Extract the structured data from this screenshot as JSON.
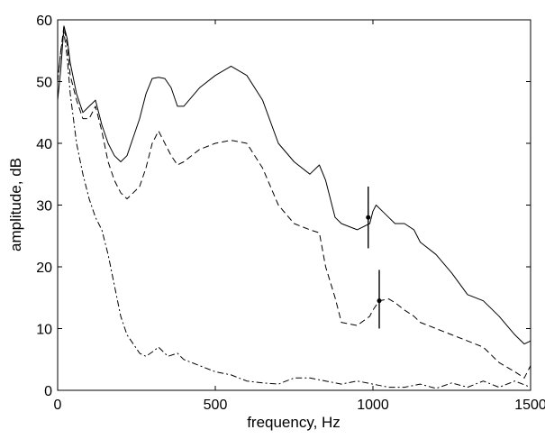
{
  "chart_data": {
    "type": "line",
    "xlabel": "frequency, Hz",
    "ylabel": "amplitude, dB",
    "xlim": [
      0,
      1500
    ],
    "ylim": [
      0,
      60
    ],
    "xticks": [
      0,
      500,
      1000,
      1500
    ],
    "yticks": [
      0,
      10,
      20,
      30,
      40,
      50,
      60
    ],
    "grid": false,
    "legend": "none",
    "series": [
      {
        "style": "solid",
        "x": [
          0,
          10,
          20,
          30,
          40,
          60,
          80,
          100,
          120,
          140,
          160,
          180,
          200,
          220,
          240,
          260,
          280,
          300,
          320,
          340,
          360,
          380,
          400,
          450,
          500,
          550,
          600,
          650,
          700,
          750,
          800,
          830,
          850,
          880,
          900,
          950,
          990,
          1000,
          1010,
          1030,
          1050,
          1070,
          1100,
          1130,
          1150,
          1200,
          1250,
          1300,
          1350,
          1400,
          1450,
          1480,
          1500
        ],
        "y": [
          47,
          52,
          59,
          57,
          53,
          48,
          45,
          46,
          47,
          43,
          40,
          38,
          37,
          38,
          41,
          44,
          48,
          50.5,
          50.7,
          50.5,
          49,
          46,
          46,
          49,
          51,
          52.5,
          51,
          47,
          40,
          37,
          35,
          36.5,
          34,
          28,
          27,
          26,
          27,
          29,
          30,
          29,
          28,
          27,
          27,
          26,
          24,
          22,
          19,
          15.5,
          14.5,
          12,
          9,
          7.5,
          8
        ]
      },
      {
        "style": "dashed",
        "x": [
          0,
          10,
          20,
          30,
          40,
          60,
          80,
          100,
          120,
          140,
          160,
          180,
          200,
          220,
          240,
          260,
          280,
          300,
          320,
          340,
          360,
          380,
          400,
          450,
          500,
          550,
          600,
          650,
          700,
          750,
          800,
          830,
          850,
          880,
          900,
          950,
          990,
          1000,
          1020,
          1050,
          1070,
          1100,
          1130,
          1150,
          1200,
          1250,
          1300,
          1350,
          1400,
          1450,
          1480,
          1500
        ],
        "y": [
          50,
          55,
          59,
          56,
          51,
          47,
          44,
          44,
          46,
          42,
          37,
          34,
          32,
          31,
          32,
          33,
          36,
          40,
          42,
          40,
          38,
          36.5,
          37,
          39,
          40,
          40.5,
          40,
          36,
          30,
          27,
          26,
          25.5,
          20,
          15,
          11,
          10.5,
          12,
          13,
          14.5,
          14.8,
          14.2,
          13,
          12,
          11,
          10,
          9,
          8,
          7,
          4.5,
          3,
          2,
          4
        ]
      },
      {
        "style": "dashdot",
        "x": [
          0,
          10,
          20,
          30,
          40,
          60,
          80,
          100,
          120,
          140,
          160,
          180,
          200,
          220,
          240,
          260,
          280,
          300,
          320,
          350,
          380,
          400,
          450,
          500,
          550,
          600,
          650,
          700,
          750,
          800,
          850,
          900,
          950,
          1000,
          1050,
          1100,
          1150,
          1200,
          1250,
          1300,
          1350,
          1400,
          1450,
          1500
        ],
        "y": [
          50,
          55,
          58,
          54,
          48,
          40,
          35,
          31,
          28,
          26,
          22,
          17,
          12,
          9,
          7.5,
          6,
          5.5,
          6.2,
          7,
          5.5,
          6,
          5,
          4,
          3,
          2.5,
          1.5,
          1.2,
          1,
          2,
          2,
          1.5,
          1,
          1.5,
          1,
          0.5,
          0.5,
          1,
          0.3,
          1.2,
          0.5,
          1.5,
          0.5,
          1.5,
          0.5
        ]
      }
    ],
    "markers": [
      {
        "x": 985,
        "y": 28,
        "y_low": 23,
        "y_high": 33
      },
      {
        "x": 1020,
        "y": 14.5,
        "y_low": 10,
        "y_high": 19.5
      }
    ]
  }
}
